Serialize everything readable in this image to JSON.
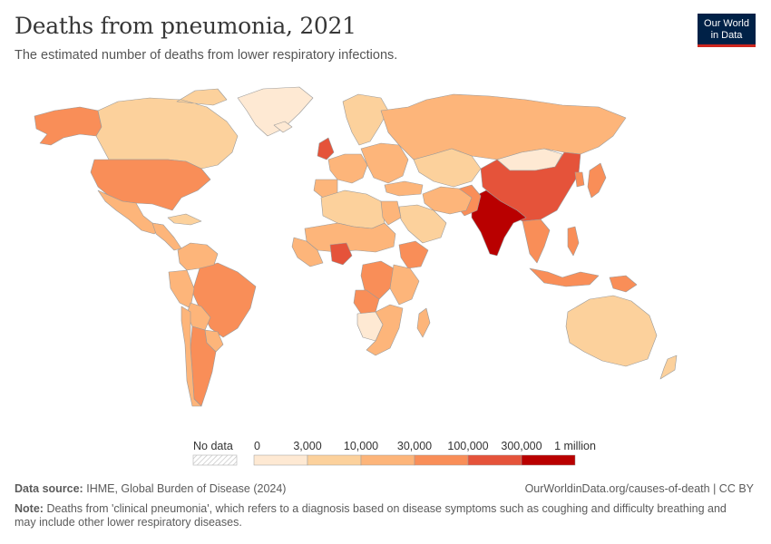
{
  "header": {
    "title": "Deaths from pneumonia, 2021",
    "subtitle": "The estimated number of deaths from lower respiratory infections."
  },
  "logo": {
    "line1": "Our World",
    "line2": "in Data",
    "bg": "#002147",
    "accent": "#ce261e"
  },
  "legend": {
    "no_data_label": "No data",
    "ticks": [
      "0",
      "3,000",
      "10,000",
      "30,000",
      "100,000",
      "300,000",
      "1 million"
    ],
    "colors": [
      "#fee9d3",
      "#fcd19c",
      "#fdb57a",
      "#f98e58",
      "#e5533a",
      "#b90000"
    ]
  },
  "footer": {
    "source_label": "Data source:",
    "source_text": "IHME, Global Burden of Disease (2024)",
    "url": "OurWorldinData.org/causes-of-death | CC BY",
    "note_label": "Note:",
    "note_text": "Deaths from 'clinical pneumonia', which refers to a diagnosis based on disease symptoms such as coughing and difficulty breathing and may include other lower respiratory diseases."
  },
  "map_regions": [
    {
      "name": "Alaska",
      "bin": 3
    },
    {
      "name": "Canada",
      "bin": 1
    },
    {
      "name": "Greenland",
      "bin": 0
    },
    {
      "name": "United States",
      "bin": 3
    },
    {
      "name": "Mexico",
      "bin": 2
    },
    {
      "name": "Central America",
      "bin": 2
    },
    {
      "name": "Cuba",
      "bin": 1
    },
    {
      "name": "Brazil",
      "bin": 3
    },
    {
      "name": "Colombia and Venezuela",
      "bin": 2
    },
    {
      "name": "Peru",
      "bin": 2
    },
    {
      "name": "Bolivia",
      "bin": 2
    },
    {
      "name": "Argentina",
      "bin": 3
    },
    {
      "name": "Chile",
      "bin": 2
    },
    {
      "name": "Paraguay and Uruguay",
      "bin": 2
    },
    {
      "name": "Iceland",
      "bin": 0
    },
    {
      "name": "Scandinavia",
      "bin": 1
    },
    {
      "name": "United Kingdom",
      "bin": 4
    },
    {
      "name": "Western Europe",
      "bin": 2
    },
    {
      "name": "Spain and Portugal",
      "bin": 2
    },
    {
      "name": "Eastern Europe",
      "bin": 2
    },
    {
      "name": "Russia",
      "bin": 2
    },
    {
      "name": "Turkey",
      "bin": 2
    },
    {
      "name": "Kazakhstan and Central Asia",
      "bin": 1
    },
    {
      "name": "Mongolia",
      "bin": 0
    },
    {
      "name": "China",
      "bin": 4
    },
    {
      "name": "Japan",
      "bin": 3
    },
    {
      "name": "Korea",
      "bin": 3
    },
    {
      "name": "India",
      "bin": 5
    },
    {
      "name": "Pakistan",
      "bin": 3
    },
    {
      "name": "Iran and Afghanistan",
      "bin": 2
    },
    {
      "name": "Arabian Peninsula",
      "bin": 1
    },
    {
      "name": "Southeast Asia",
      "bin": 3
    },
    {
      "name": "Indonesia",
      "bin": 3
    },
    {
      "name": "Philippines",
      "bin": 3
    },
    {
      "name": "Papua New Guinea",
      "bin": 3
    },
    {
      "name": "Australia",
      "bin": 1
    },
    {
      "name": "New Zealand",
      "bin": 1
    },
    {
      "name": "North Africa",
      "bin": 1
    },
    {
      "name": "Egypt",
      "bin": 2
    },
    {
      "name": "Sahel",
      "bin": 2
    },
    {
      "name": "West Africa",
      "bin": 2
    },
    {
      "name": "Nigeria",
      "bin": 4
    },
    {
      "name": "Ethiopia",
      "bin": 3
    },
    {
      "name": "DR Congo",
      "bin": 3
    },
    {
      "name": "East Africa",
      "bin": 2
    },
    {
      "name": "Angola",
      "bin": 3
    },
    {
      "name": "Southern Africa",
      "bin": 2
    },
    {
      "name": "Namibia and Botswana",
      "bin": 0
    },
    {
      "name": "Madagascar",
      "bin": 2
    }
  ]
}
